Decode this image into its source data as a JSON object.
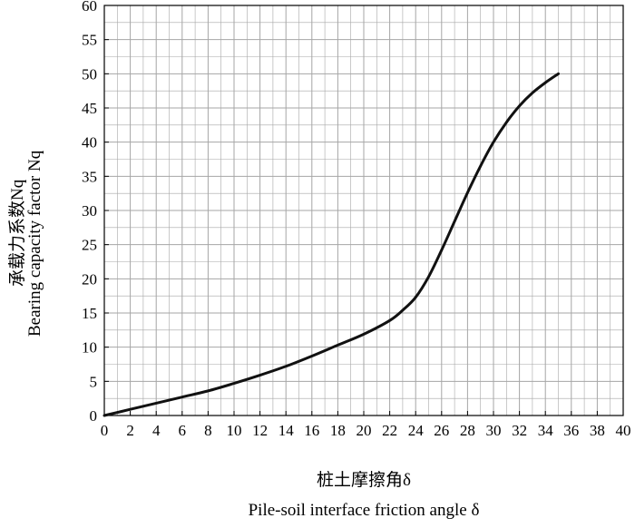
{
  "chart_data": {
    "type": "line",
    "xlabel_cn": "桩土摩擦角δ",
    "xlabel_en": "Pile-soil interface friction angle δ",
    "ylabel_cn": "承载力系数Nq",
    "ylabel_en": "Bearing capacity factor Nq",
    "xlim": [
      0,
      40
    ],
    "ylim": [
      0,
      60
    ],
    "x_ticks": [
      0,
      2,
      4,
      6,
      8,
      10,
      12,
      14,
      16,
      18,
      20,
      22,
      24,
      26,
      28,
      30,
      32,
      34,
      36,
      38,
      40
    ],
    "y_ticks": [
      0,
      5,
      10,
      15,
      20,
      25,
      30,
      35,
      40,
      45,
      50,
      55,
      60
    ],
    "grid": true,
    "series": [
      {
        "x": [
          0,
          2,
          4,
          6,
          8,
          10,
          12,
          14,
          16,
          18,
          20,
          22,
          23,
          24,
          25,
          26,
          27,
          28,
          29,
          30,
          31,
          32,
          33,
          34,
          35
        ],
        "y": [
          0,
          0.9,
          1.8,
          2.7,
          3.6,
          4.7,
          5.9,
          7.2,
          8.7,
          10.3,
          11.9,
          13.9,
          15.4,
          17.3,
          20.3,
          24.2,
          28.4,
          32.6,
          36.5,
          40.0,
          42.9,
          45.3,
          47.2,
          48.7,
          50.0
        ]
      }
    ]
  },
  "colors": {
    "line": "#111111",
    "grid": "#a6a6a6",
    "axis": "#000000"
  }
}
